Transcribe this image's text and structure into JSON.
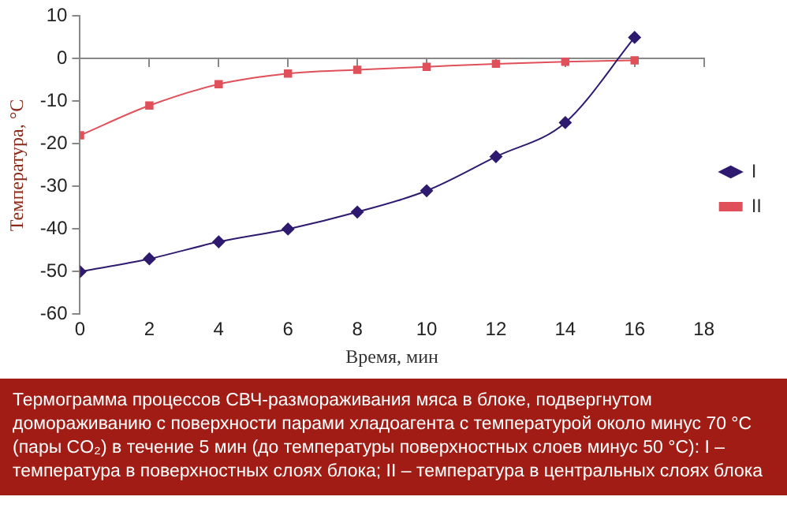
{
  "chart_data": {
    "type": "line",
    "xlabel": "Время, мин",
    "ylabel": "Температура, °С",
    "x": [
      0,
      2,
      4,
      6,
      8,
      10,
      12,
      14,
      16
    ],
    "series": [
      {
        "name": "I",
        "color": "#2e1a6e",
        "marker": "diamond",
        "values": [
          -50,
          -47,
          -43,
          -40,
          -36,
          -31,
          -23,
          -15,
          5
        ]
      },
      {
        "name": "II",
        "color": "#e0505a",
        "marker": "square",
        "values": [
          -18,
          -11,
          -6,
          -3.5,
          -2.6,
          -1.9,
          -1.2,
          -0.7,
          -0.4
        ]
      }
    ],
    "xlim": [
      0,
      18
    ],
    "xticks": [
      0,
      2,
      4,
      6,
      8,
      10,
      12,
      14,
      16,
      18
    ],
    "ylim": [
      -60,
      10
    ],
    "yticks": [
      -60,
      -50,
      -40,
      -30,
      -20,
      -10,
      0,
      10
    ],
    "legend": "right",
    "annotations": [
      "Термограмма процессов СВЧ-размораживания мяса в блоке, подвергнутом домораживанию с поверхности парами хладоагента с температурой около минус 70 °C (пары CO₂) в течение 5 мин (до температуры поверхностных слоев минус 50 °C): I – температура в поверхностных слоях блока; II – температура в центральных слоях блока"
    ]
  }
}
